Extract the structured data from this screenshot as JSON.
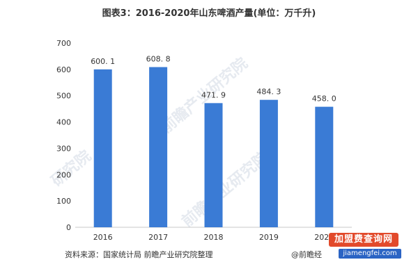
{
  "title": "图表3：2016-2020年山东啤酒产量(单位：万千升)",
  "source": "资料来源：国家统计局 前瞻产业研究院整理",
  "credit": "@前瞻经",
  "watermarks": {
    "background_1": "前瞻产业研究院",
    "background_2": "前瞻产业研究院",
    "background_3": "研究院",
    "badge": "加盟费查询网",
    "url": "jiamengfei.com"
  },
  "chart_data": {
    "type": "bar",
    "categories": [
      "2016",
      "2017",
      "2018",
      "2019",
      "2020"
    ],
    "values": [
      600.1,
      608.8,
      471.9,
      484.3,
      458.0
    ],
    "value_labels": [
      "600. 1",
      "608. 8",
      "471. 9",
      "484. 3",
      "458. 0"
    ],
    "yticks": [
      "0",
      "100",
      "200",
      "300",
      "400",
      "500",
      "600",
      "700"
    ],
    "ylim": [
      0,
      700
    ],
    "bar_color": "#3a7bd5",
    "grid": false
  }
}
